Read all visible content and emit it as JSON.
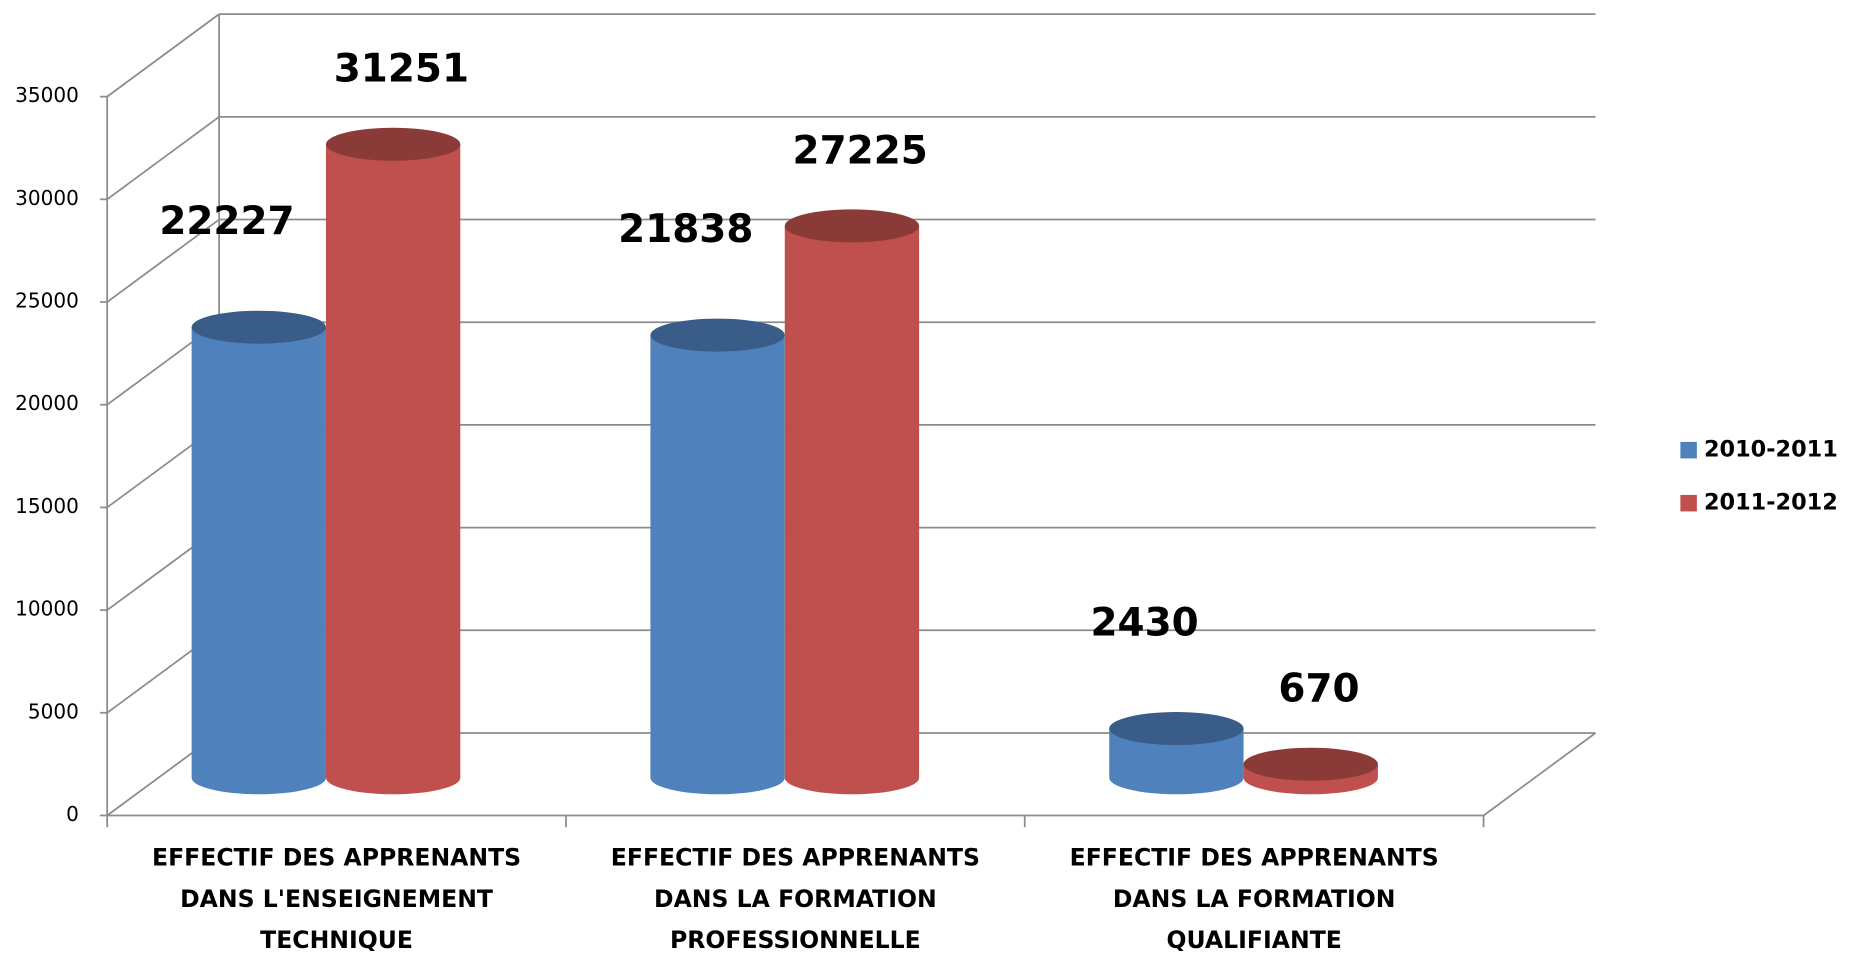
{
  "chart_data": {
    "type": "bar3d",
    "categories": [
      [
        "EFFECTIF DES APPRENANTS",
        "DANS L'ENSEIGNEMENT",
        "TECHNIQUE"
      ],
      [
        "EFFECTIF DES APPRENANTS",
        "DANS LA FORMATION",
        "PROFESSIONNELLE"
      ],
      [
        "EFFECTIF DES APPRENANTS",
        "DANS LA FORMATION",
        "QUALIFIANTE"
      ]
    ],
    "series": [
      {
        "name": "2010-2011",
        "color": "#4f81bd",
        "values": [
          22227,
          21838,
          2430
        ]
      },
      {
        "name": "2011-2012",
        "color": "#c0504d",
        "values": [
          31251,
          27225,
          670
        ]
      }
    ],
    "ylim": [
      0,
      35000
    ],
    "yticks": [
      0,
      5000,
      10000,
      15000,
      20000,
      25000,
      30000,
      35000
    ],
    "grid": true,
    "legend": "right"
  }
}
